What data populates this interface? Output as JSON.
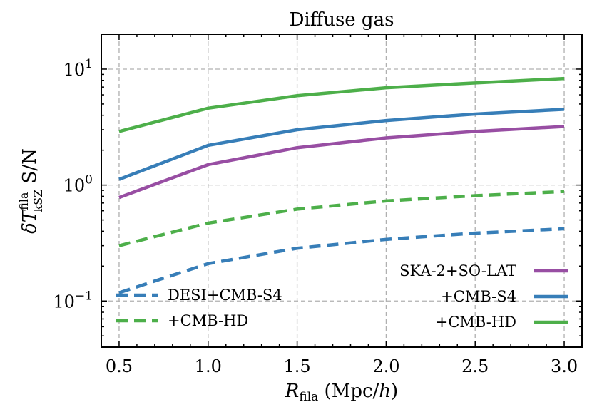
{
  "chart_data": {
    "type": "line",
    "title": "Diffuse gas",
    "xlabel": {
      "main": "R",
      "sub": "fila",
      "rest": " (Mpc/",
      "italic_tail": "h",
      "close": ")"
    },
    "ylabel": {
      "delta": "δT",
      "sup": "fila",
      "sub": "kSZ",
      "rest": " S/N"
    },
    "x_scale": "linear",
    "y_scale": "log",
    "xlim": [
      0.4,
      3.1
    ],
    "ylim": [
      0.04,
      20
    ],
    "xticks": [
      0.5,
      1.0,
      1.5,
      2.0,
      2.5,
      3.0
    ],
    "xtick_labels": [
      "0.5",
      "1.0",
      "1.5",
      "2.0",
      "2.5",
      "3.0"
    ],
    "yticks": [
      0.1,
      1,
      10
    ],
    "ytick_labels": [
      {
        "base": "10",
        "exp": "−1"
      },
      {
        "base": "10",
        "exp": "0"
      },
      {
        "base": "10",
        "exp": "1"
      }
    ],
    "grid": true,
    "x": [
      0.5,
      1.0,
      1.5,
      2.0,
      2.5,
      3.0
    ],
    "series": [
      {
        "name": "SKA-2+SO-LAT",
        "color": "#984ea3",
        "style": "solid",
        "values": [
          0.78,
          1.5,
          2.1,
          2.55,
          2.9,
          3.2
        ]
      },
      {
        "name": "+CMB-S4",
        "color": "#377eb8",
        "style": "solid",
        "values": [
          1.12,
          2.2,
          3.0,
          3.6,
          4.1,
          4.5
        ]
      },
      {
        "name": "+CMB-HD",
        "color": "#4daf4a",
        "style": "solid",
        "values": [
          2.9,
          4.6,
          5.9,
          6.9,
          7.6,
          8.3
        ]
      },
      {
        "name": "DESI+CMB-S4",
        "color": "#377eb8",
        "style": "dashed",
        "values": [
          0.118,
          0.21,
          0.285,
          0.34,
          0.385,
          0.42
        ]
      },
      {
        "name": "+CMB-HD",
        "color": "#4daf4a",
        "style": "dashed",
        "values": [
          0.3,
          0.47,
          0.62,
          0.73,
          0.81,
          0.88
        ]
      }
    ],
    "legends": [
      {
        "placement": "lower-left",
        "entries": [
          3,
          4
        ]
      },
      {
        "placement": "lower-right",
        "entries": [
          0,
          1,
          2
        ]
      }
    ]
  }
}
